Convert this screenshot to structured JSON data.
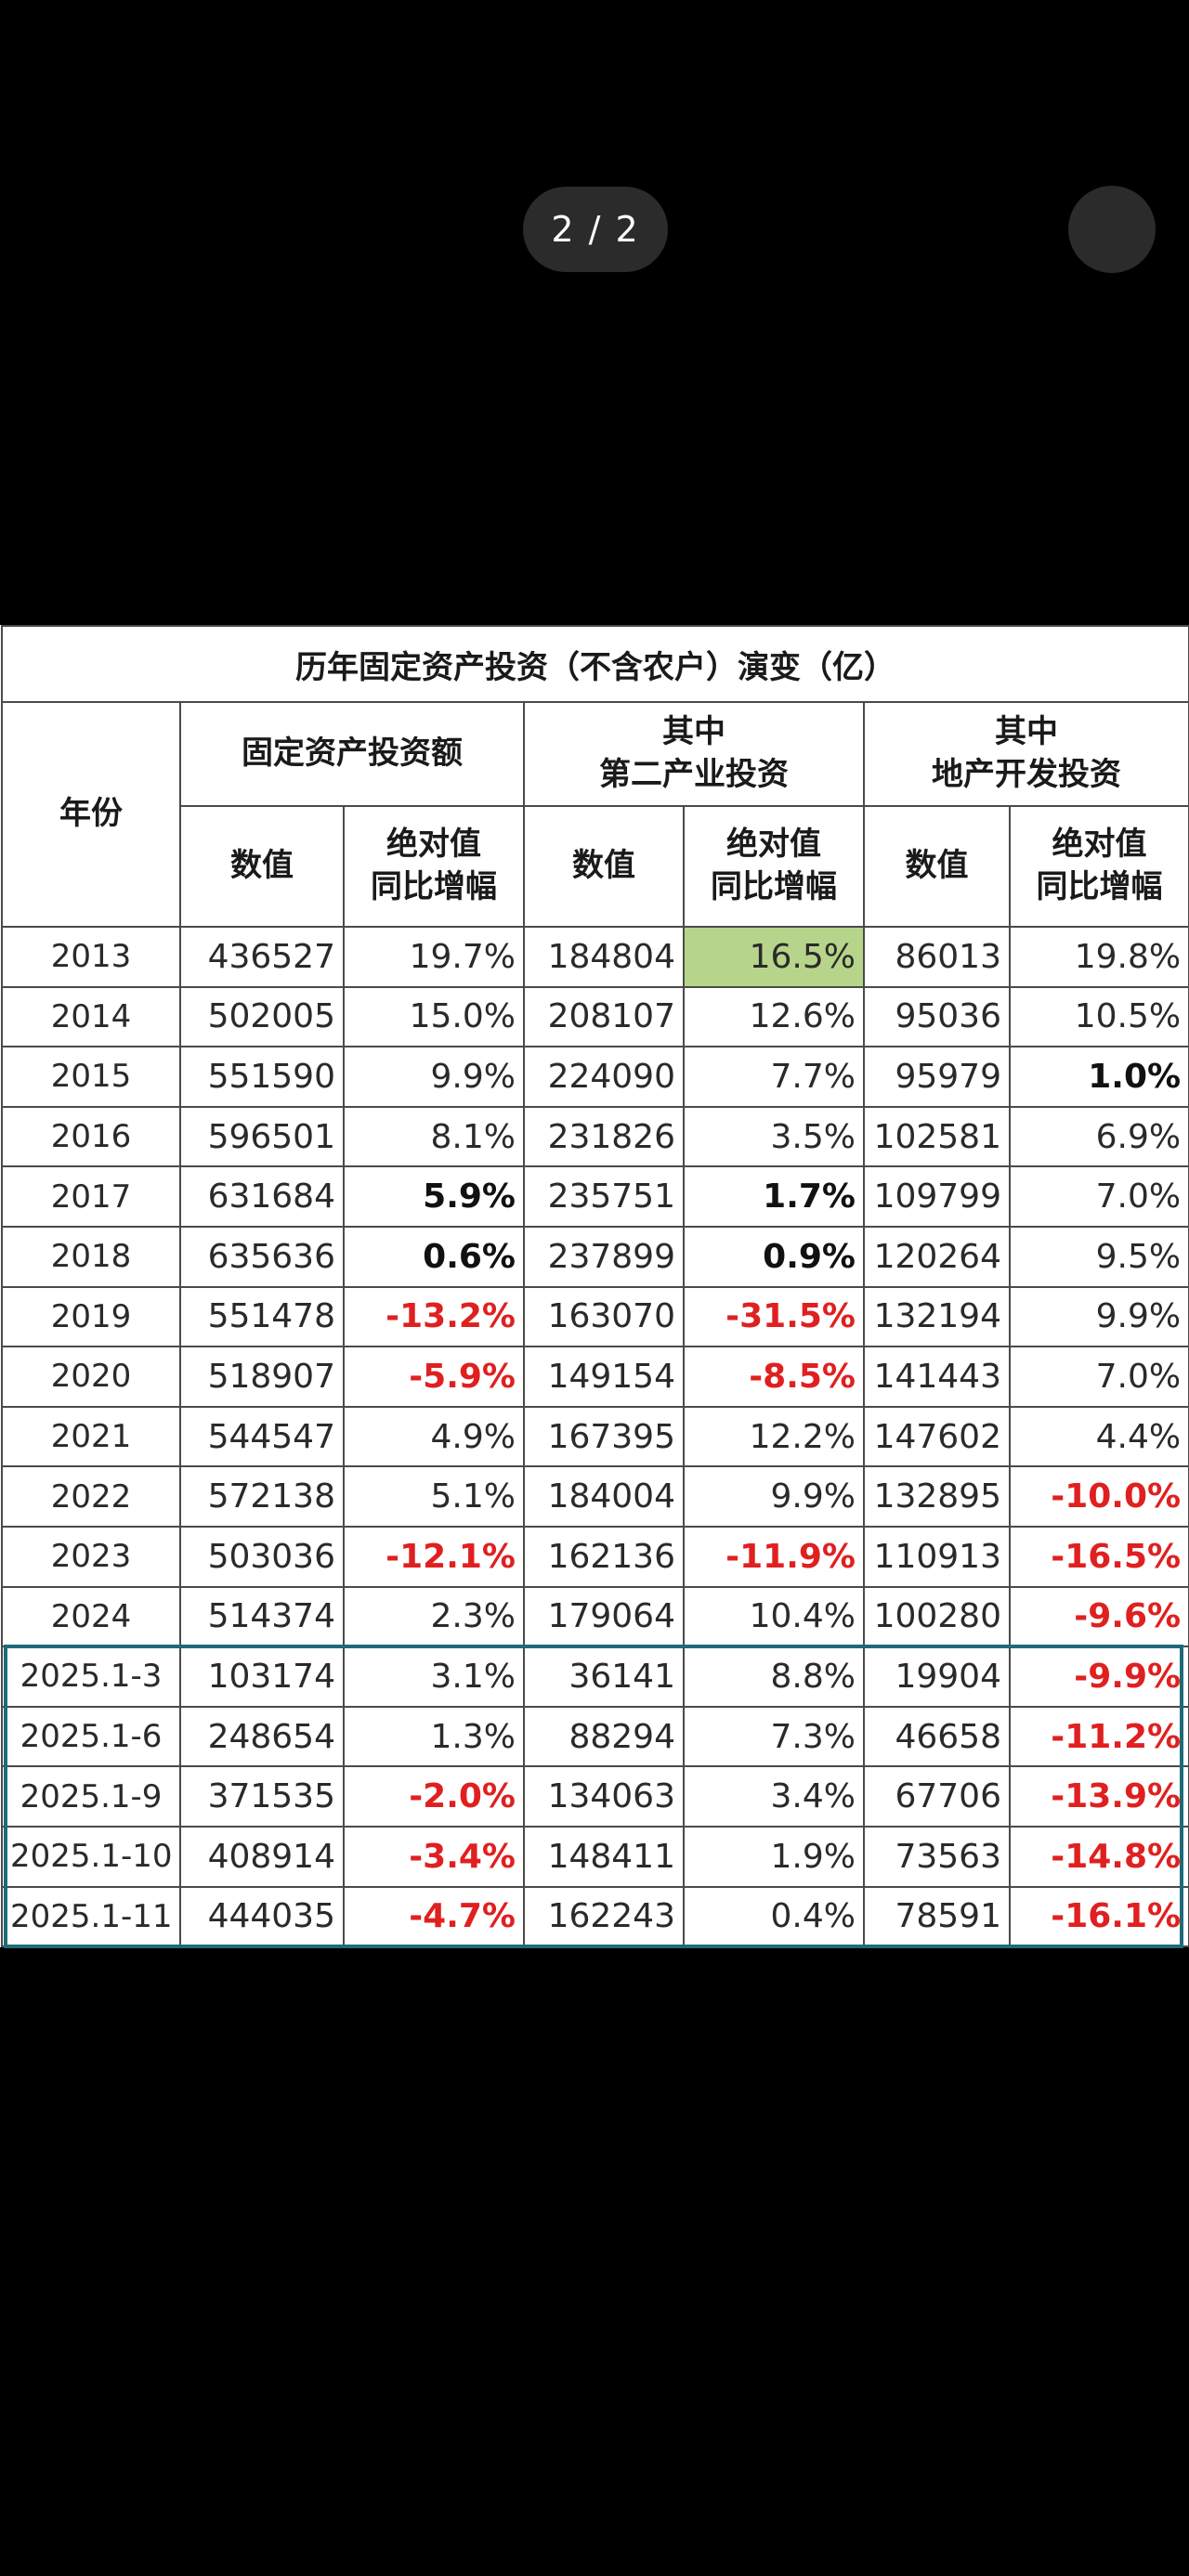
{
  "viewer": {
    "page_indicator": "2 / 2"
  },
  "table": {
    "title": "历年固定资产投资（不含农户）演变（亿）",
    "headers": {
      "year": "年份",
      "group1": "固定资产投资额",
      "group2_line1": "其中",
      "group2_line2": "第二产业投资",
      "group3_line1": "其中",
      "group3_line2": "地产开发投资",
      "value": "数值",
      "yoy_line1": "绝对值",
      "yoy_line2": "同比增幅"
    },
    "rows": [
      {
        "year": "2013",
        "fai": "436527",
        "fai_yoy": "19.7%",
        "sec": "184804",
        "sec_yoy": "16.5%",
        "re": "86013",
        "re_yoy": "19.8%"
      },
      {
        "year": "2014",
        "fai": "502005",
        "fai_yoy": "15.0%",
        "sec": "208107",
        "sec_yoy": "12.6%",
        "re": "95036",
        "re_yoy": "10.5%"
      },
      {
        "year": "2015",
        "fai": "551590",
        "fai_yoy": "9.9%",
        "sec": "224090",
        "sec_yoy": "7.7%",
        "re": "95979",
        "re_yoy": "1.0%"
      },
      {
        "year": "2016",
        "fai": "596501",
        "fai_yoy": "8.1%",
        "sec": "231826",
        "sec_yoy": "3.5%",
        "re": "102581",
        "re_yoy": "6.9%"
      },
      {
        "year": "2017",
        "fai": "631684",
        "fai_yoy": "5.9%",
        "sec": "235751",
        "sec_yoy": "1.7%",
        "re": "109799",
        "re_yoy": "7.0%"
      },
      {
        "year": "2018",
        "fai": "635636",
        "fai_yoy": "0.6%",
        "sec": "237899",
        "sec_yoy": "0.9%",
        "re": "120264",
        "re_yoy": "9.5%"
      },
      {
        "year": "2019",
        "fai": "551478",
        "fai_yoy": "-13.2%",
        "sec": "163070",
        "sec_yoy": "-31.5%",
        "re": "132194",
        "re_yoy": "9.9%"
      },
      {
        "year": "2020",
        "fai": "518907",
        "fai_yoy": "-5.9%",
        "sec": "149154",
        "sec_yoy": "-8.5%",
        "re": "141443",
        "re_yoy": "7.0%"
      },
      {
        "year": "2021",
        "fai": "544547",
        "fai_yoy": "4.9%",
        "sec": "167395",
        "sec_yoy": "12.2%",
        "re": "147602",
        "re_yoy": "4.4%"
      },
      {
        "year": "2022",
        "fai": "572138",
        "fai_yoy": "5.1%",
        "sec": "184004",
        "sec_yoy": "9.9%",
        "re": "132895",
        "re_yoy": "-10.0%"
      },
      {
        "year": "2023",
        "fai": "503036",
        "fai_yoy": "-12.1%",
        "sec": "162136",
        "sec_yoy": "-11.9%",
        "re": "110913",
        "re_yoy": "-16.5%"
      },
      {
        "year": "2024",
        "fai": "514374",
        "fai_yoy": "2.3%",
        "sec": "179064",
        "sec_yoy": "10.4%",
        "re": "100280",
        "re_yoy": "-9.6%"
      },
      {
        "year": "2025.1-3",
        "fai": "103174",
        "fai_yoy": "3.1%",
        "sec": "36141",
        "sec_yoy": "8.8%",
        "re": "19904",
        "re_yoy": "-9.9%"
      },
      {
        "year": "2025.1-6",
        "fai": "248654",
        "fai_yoy": "1.3%",
        "sec": "88294",
        "sec_yoy": "7.3%",
        "re": "46658",
        "re_yoy": "-11.2%"
      },
      {
        "year": "2025.1-9",
        "fai": "371535",
        "fai_yoy": "-2.0%",
        "sec": "134063",
        "sec_yoy": "3.4%",
        "re": "67706",
        "re_yoy": "-13.9%"
      },
      {
        "year": "2025.1-10",
        "fai": "408914",
        "fai_yoy": "-3.4%",
        "sec": "148411",
        "sec_yoy": "1.9%",
        "re": "73563",
        "re_yoy": "-14.8%"
      },
      {
        "year": "2025.1-11",
        "fai": "444035",
        "fai_yoy": "-4.7%",
        "sec": "162243",
        "sec_yoy": "0.4%",
        "re": "78591",
        "re_yoy": "-16.1%"
      }
    ],
    "colors": {
      "negative_text": "#e02020",
      "highlight_cell": "#b6d58b",
      "group_2025_border": "#1f6b78"
    }
  }
}
